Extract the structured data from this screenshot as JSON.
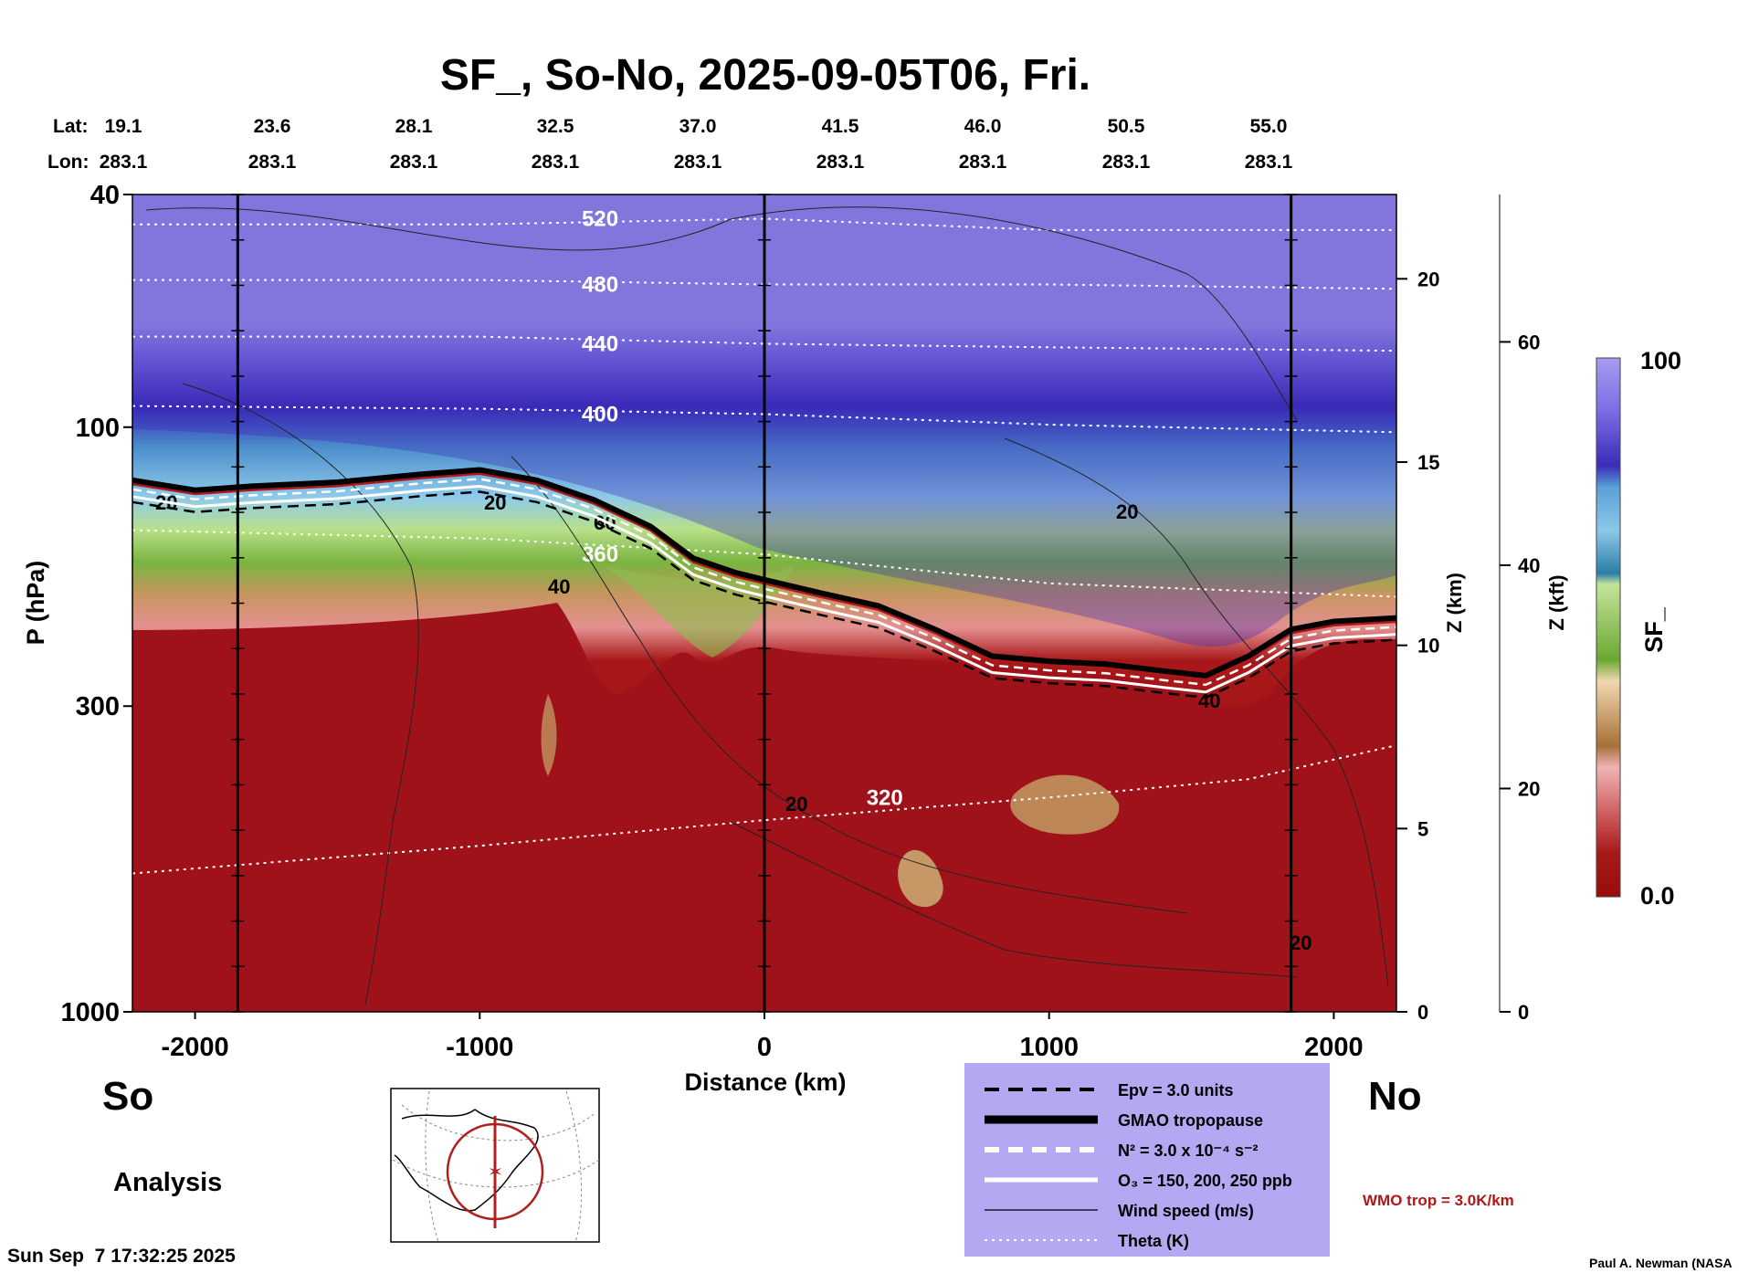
{
  "title": "SF_, So-No, 2025-09-05T06, Fri.",
  "header": {
    "lat_label": "Lat:",
    "lon_label": "Lon:",
    "lats": [
      "19.1",
      "23.6",
      "28.1",
      "32.5",
      "37.0",
      "41.5",
      "46.0",
      "50.5",
      "55.0"
    ],
    "lons": [
      "283.1",
      "283.1",
      "283.1",
      "283.1",
      "283.1",
      "283.1",
      "283.1",
      "283.1",
      "283.1"
    ]
  },
  "corner_labels": {
    "south": "So",
    "north": "No",
    "mode": "Analysis",
    "timestamp": "Sun Sep  7 17:32:25 2025",
    "credit": "Paul A. Newman (NASA",
    "wmo_note": "WMO trop = 3.0K/km"
  },
  "legend": {
    "items": [
      {
        "label": "Epv = 3.0 units",
        "style": "dashed-black"
      },
      {
        "label": "GMAO tropopause",
        "style": "thick-black"
      },
      {
        "label": "N² = 3.0 x 10⁻⁴ s⁻²",
        "style": "dashed-white"
      },
      {
        "label": "O₃ = 150, 200, 250 ppb",
        "style": "solid-white"
      },
      {
        "label": "Wind speed (m/s)",
        "style": "thin-black"
      },
      {
        "label": "Theta (K)",
        "style": "dotted-white"
      }
    ],
    "background": "#b4a8f2"
  },
  "colorbar": {
    "label": "SF_",
    "max_label": "100",
    "min_label": "0.0",
    "colors_top_to_bottom": [
      "#a79cf0",
      "#8a7de8",
      "#6c5fdc",
      "#4c3fcb",
      "#3627b0",
      "#5aa0d6",
      "#8cc8e8",
      "#4aa0c8",
      "#2a7ea8",
      "#2e6e96",
      "#c4e49a",
      "#a8d47a",
      "#8cc050",
      "#6aa830",
      "#f0d8b0",
      "#e0b888",
      "#c8945a",
      "#a87038",
      "#f0b4b4",
      "#e08888",
      "#c85050",
      "#a81818",
      "#9a0c0c"
    ]
  },
  "chart_data": {
    "type": "heatmap",
    "title": "SF_, So-No, 2025-09-05T06, Fri.",
    "xlabel": "Distance (km)",
    "ylabel": "P (hPa)",
    "y2label": "Z (km)",
    "y3label": "Z (kft)",
    "xlim": [
      -2220,
      2220
    ],
    "ylim": [
      1000,
      40
    ],
    "y_scale": "log",
    "xticks": [
      -2000,
      -1000,
      0,
      1000,
      2000
    ],
    "yticks": [
      {
        "value": 40,
        "label": "40"
      },
      {
        "value": 100,
        "label": "100"
      },
      {
        "value": 300,
        "label": "300"
      },
      {
        "value": 1000,
        "label": "1000"
      }
    ],
    "z_km_ticks": [
      {
        "z": 0,
        "label": "0"
      },
      {
        "z": 5,
        "label": "5"
      },
      {
        "z": 10,
        "label": "10"
      },
      {
        "z": 15,
        "label": "15"
      },
      {
        "z": 20,
        "label": "20"
      }
    ],
    "z_kft_ticks": [
      {
        "z": 0,
        "label": "0"
      },
      {
        "z": 20,
        "label": "20"
      },
      {
        "z": 40,
        "label": "40"
      },
      {
        "z": 60,
        "label": "60"
      }
    ],
    "z_km_max": 22.3,
    "z_kft_max": 73.2,
    "colorbar_range": [
      0.0,
      100
    ],
    "vertical_markers_km": [
      -1850,
      0,
      1850
    ],
    "tropopause_hpa": [
      [
        -2220,
        125
      ],
      [
        -2000,
        130
      ],
      [
        -1800,
        128
      ],
      [
        -1500,
        126
      ],
      [
        -1200,
        122
      ],
      [
        -1000,
        120
      ],
      [
        -800,
        125
      ],
      [
        -600,
        135
      ],
      [
        -400,
        150
      ],
      [
        -250,
        170
      ],
      [
        -100,
        180
      ],
      [
        0,
        185
      ],
      [
        200,
        195
      ],
      [
        400,
        205
      ],
      [
        600,
        225
      ],
      [
        800,
        250
      ],
      [
        1000,
        255
      ],
      [
        1200,
        258
      ],
      [
        1400,
        265
      ],
      [
        1550,
        270
      ],
      [
        1700,
        250
      ],
      [
        1850,
        225
      ],
      [
        2000,
        218
      ],
      [
        2220,
        215
      ]
    ],
    "theta_contours": [
      {
        "label": "520",
        "points": [
          [
            -2220,
            45
          ],
          [
            -1000,
            45
          ],
          [
            0,
            44
          ],
          [
            1000,
            46
          ],
          [
            2220,
            46
          ]
        ]
      },
      {
        "label": "480",
        "points": [
          [
            -2220,
            56
          ],
          [
            -1000,
            56
          ],
          [
            0,
            57
          ],
          [
            1000,
            57
          ],
          [
            2220,
            58
          ]
        ]
      },
      {
        "label": "440",
        "points": [
          [
            -2220,
            70
          ],
          [
            -1000,
            70
          ],
          [
            0,
            72
          ],
          [
            1000,
            73
          ],
          [
            2220,
            74
          ]
        ]
      },
      {
        "label": "400",
        "points": [
          [
            -2220,
            92
          ],
          [
            -1000,
            93
          ],
          [
            0,
            95
          ],
          [
            1000,
            99
          ],
          [
            2220,
            102
          ]
        ]
      },
      {
        "label": "360",
        "points": [
          [
            -2220,
            150
          ],
          [
            -1000,
            155
          ],
          [
            0,
            165
          ],
          [
            1000,
            185
          ],
          [
            2220,
            195
          ]
        ]
      },
      {
        "label": "320",
        "points": [
          [
            -2220,
            580
          ],
          [
            -1000,
            520
          ],
          [
            0,
            470
          ],
          [
            1000,
            430
          ],
          [
            1700,
            400
          ],
          [
            2220,
            350
          ]
        ]
      }
    ],
    "wind_speed_labels": [
      "20",
      "20",
      "40",
      "60",
      "20",
      "20",
      "20",
      "40"
    ],
    "grid": false,
    "legend_position": "bottom-center"
  }
}
